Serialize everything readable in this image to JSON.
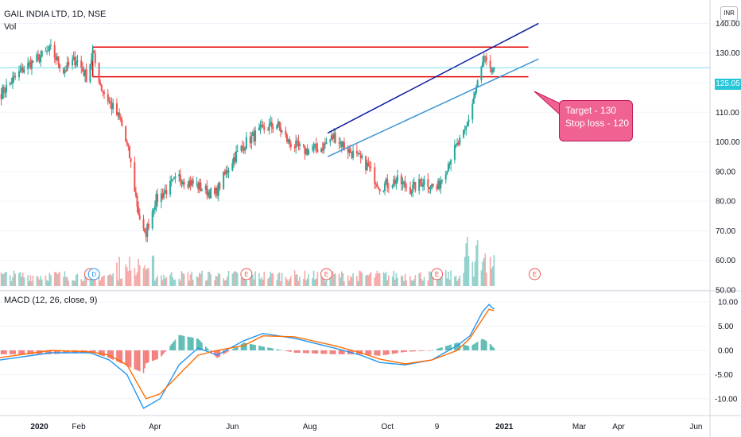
{
  "header": {
    "symbol_line": "GAIL INDIA LTD, 1D, NSE",
    "volume_label": "Vol",
    "macd_label": "MACD (12, 26, close, 9)"
  },
  "price_badge": "125.05",
  "currency": "INR",
  "callout": {
    "line1": "Target - 130",
    "line2": "Stop loss - 120"
  },
  "event_marks": [
    "E",
    "D",
    "E",
    "E",
    "E",
    "E"
  ],
  "colors": {
    "up": "#26a69a",
    "down": "#ef5350",
    "trend_line": "#0d1c9e",
    "channel_line": "#3e95d6",
    "zone": "#e50000",
    "callout": "#f06292",
    "macd": "#2196f3",
    "signal": "#ff6d00",
    "last_price": "#26c6da"
  },
  "chart_data": [
    {
      "type": "candlestick",
      "title": "GAIL INDIA LTD, 1D, NSE",
      "y_ticks": [
        140.0,
        130.0,
        120.0,
        110.0,
        100.0,
        90.0,
        80.0,
        70.0,
        60.0,
        50.0
      ],
      "ylim": [
        50,
        142
      ],
      "last_price": 125.05,
      "x_ticks": [
        "2020",
        "Feb",
        "Apr",
        "Jun",
        "Aug",
        "Oct",
        "9",
        "2021",
        "Mar",
        "Apr",
        "Jun"
      ],
      "anchors": [
        {
          "date": "2019-12-01",
          "close": 116
        },
        {
          "date": "2019-12-20",
          "close": 125
        },
        {
          "date": "2020-01-10",
          "close": 131
        },
        {
          "date": "2020-01-20",
          "close": 124
        },
        {
          "date": "2020-01-30",
          "close": 128
        },
        {
          "date": "2020-02-07",
          "close": 122
        },
        {
          "date": "2020-02-12",
          "close": 130
        },
        {
          "date": "2020-02-19",
          "close": 118
        },
        {
          "date": "2020-03-05",
          "close": 107
        },
        {
          "date": "2020-03-12",
          "close": 95
        },
        {
          "date": "2020-03-19",
          "close": 76
        },
        {
          "date": "2020-03-24",
          "close": 68
        },
        {
          "date": "2020-04-01",
          "close": 80
        },
        {
          "date": "2020-04-20",
          "close": 88
        },
        {
          "date": "2020-05-01",
          "close": 86
        },
        {
          "date": "2020-05-18",
          "close": 82
        },
        {
          "date": "2020-06-01",
          "close": 94
        },
        {
          "date": "2020-06-12",
          "close": 100
        },
        {
          "date": "2020-06-24",
          "close": 104
        },
        {
          "date": "2020-07-06",
          "close": 106
        },
        {
          "date": "2020-07-15",
          "close": 100
        },
        {
          "date": "2020-07-27",
          "close": 97
        },
        {
          "date": "2020-08-10",
          "close": 98
        },
        {
          "date": "2020-08-20",
          "close": 102
        },
        {
          "date": "2020-09-01",
          "close": 97
        },
        {
          "date": "2020-09-15",
          "close": 92
        },
        {
          "date": "2020-09-25",
          "close": 85
        },
        {
          "date": "2020-10-08",
          "close": 87
        },
        {
          "date": "2020-10-20",
          "close": 84
        },
        {
          "date": "2020-10-30",
          "close": 87
        },
        {
          "date": "2020-11-09",
          "close": 84
        },
        {
          "date": "2020-11-20",
          "close": 95
        },
        {
          "date": "2020-12-01",
          "close": 103
        },
        {
          "date": "2020-12-08",
          "close": 115
        },
        {
          "date": "2020-12-16",
          "close": 128
        },
        {
          "date": "2020-12-21",
          "close": 123
        },
        {
          "date": "2020-12-24",
          "close": 125.05
        }
      ],
      "drawings": {
        "resistance_zone": {
          "top": 132,
          "bottom": 122,
          "from": "2020-02-12",
          "to": "2021-01-20"
        },
        "upper_trend_line": {
          "from": [
            "2020-08-15",
            103
          ],
          "to": [
            "2021-01-28",
            140
          ]
        },
        "lower_channel_line": {
          "from": [
            "2020-08-15",
            95
          ],
          "to": [
            "2021-01-28",
            128
          ]
        }
      }
    },
    {
      "type": "bar",
      "title": "Vol",
      "note": "daily volume histogram, colored by candle direction"
    },
    {
      "type": "line",
      "title": "MACD (12, 26, close, 9)",
      "y_ticks": [
        10.0,
        5.0,
        0.0,
        -5.0,
        -10.0
      ],
      "ylim": [
        -13,
        12
      ],
      "series": [
        {
          "name": "MACD",
          "points": [
            [
              "2019-12-01",
              -2
            ],
            [
              "2020-01-10",
              -0.5
            ],
            [
              "2020-02-10",
              -0.5
            ],
            [
              "2020-02-25",
              -2
            ],
            [
              "2020-03-10",
              -5
            ],
            [
              "2020-03-23",
              -12
            ],
            [
              "2020-04-05",
              -10
            ],
            [
              "2020-04-20",
              -3
            ],
            [
              "2020-05-05",
              0.5
            ],
            [
              "2020-05-20",
              -1
            ],
            [
              "2020-06-10",
              2
            ],
            [
              "2020-06-25",
              3.5
            ],
            [
              "2020-07-20",
              2.5
            ],
            [
              "2020-08-20",
              0.5
            ],
            [
              "2020-09-10",
              -1
            ],
            [
              "2020-09-25",
              -2.5
            ],
            [
              "2020-10-15",
              -3
            ],
            [
              "2020-11-05",
              -2
            ],
            [
              "2020-11-25",
              1
            ],
            [
              "2020-12-05",
              3
            ],
            [
              "2020-12-15",
              8
            ],
            [
              "2020-12-20",
              9.5
            ],
            [
              "2020-12-24",
              8.5
            ]
          ]
        },
        {
          "name": "Signal",
          "points": [
            [
              "2019-12-01",
              -1.5
            ],
            [
              "2020-01-10",
              0
            ],
            [
              "2020-02-10",
              -0.3
            ],
            [
              "2020-02-25",
              -1
            ],
            [
              "2020-03-10",
              -3
            ],
            [
              "2020-03-25",
              -10
            ],
            [
              "2020-04-05",
              -9
            ],
            [
              "2020-04-20",
              -5
            ],
            [
              "2020-05-05",
              -1
            ],
            [
              "2020-05-20",
              0
            ],
            [
              "2020-06-10",
              1
            ],
            [
              "2020-06-25",
              3
            ],
            [
              "2020-07-20",
              2.8
            ],
            [
              "2020-08-20",
              1
            ],
            [
              "2020-09-10",
              -0.5
            ],
            [
              "2020-09-25",
              -1.8
            ],
            [
              "2020-10-15",
              -2.8
            ],
            [
              "2020-11-05",
              -2
            ],
            [
              "2020-11-25",
              0
            ],
            [
              "2020-12-05",
              2.5
            ],
            [
              "2020-12-15",
              6.5
            ],
            [
              "2020-12-20",
              8.5
            ],
            [
              "2020-12-24",
              8.2
            ]
          ]
        }
      ]
    }
  ]
}
